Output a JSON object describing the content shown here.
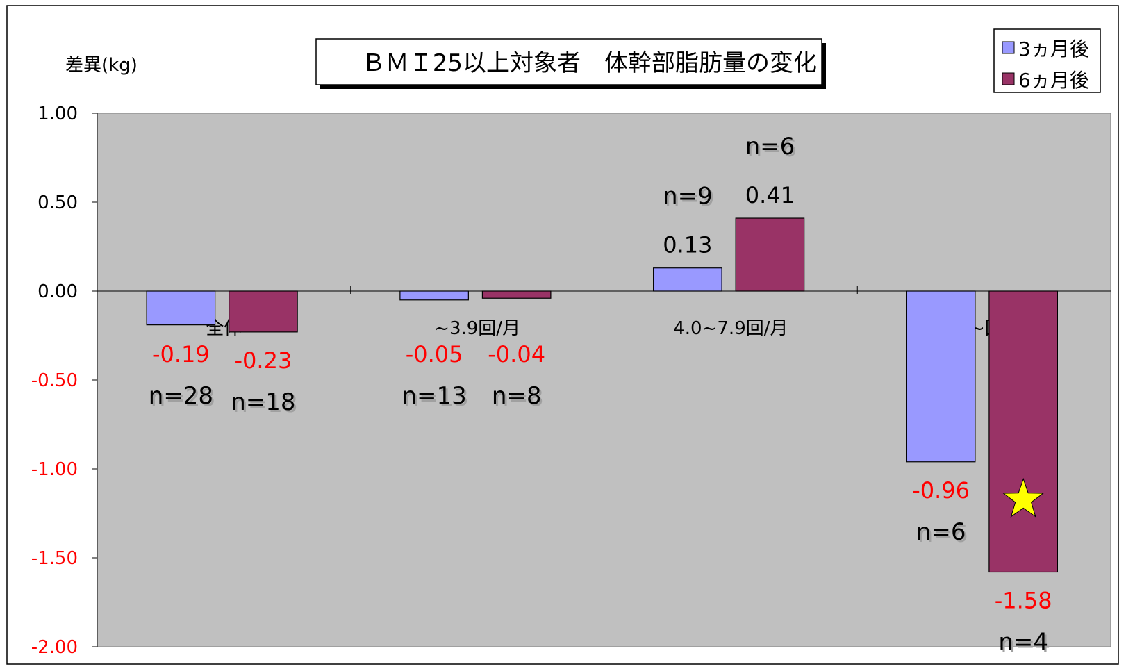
{
  "chart_data": {
    "type": "bar",
    "title": "ＢＭＩ25以上対象者　体幹部脂肪量の変化",
    "ylabel": "差異(kg)",
    "xlabel": "",
    "ylim": [
      -2.0,
      1.0
    ],
    "y_ticks": [
      "1.00",
      "0.50",
      "0.00",
      "-0.50",
      "-1.00",
      "-1.50",
      "-2.00"
    ],
    "y_tick_values": [
      1.0,
      0.5,
      0.0,
      -0.5,
      -1.0,
      -1.5,
      -2.0
    ],
    "categories": [
      "全体",
      "~3.9回/月",
      "4.0~7.9回/月",
      "8.0~回/月"
    ],
    "series": [
      {
        "name": "3ヵ月後",
        "color": "#9999ff",
        "values": [
          -0.19,
          -0.05,
          0.13,
          -0.96
        ],
        "value_labels": [
          "-0.19",
          "-0.05",
          "0.13",
          "-0.96"
        ],
        "n_labels": [
          "n=28",
          "n=13",
          "n=9",
          "n=6"
        ]
      },
      {
        "name": "6ヵ月後",
        "color": "#993366",
        "values": [
          -0.23,
          -0.04,
          0.41,
          -1.58
        ],
        "value_labels": [
          "-0.23",
          "-0.04",
          "0.41",
          "-1.58"
        ],
        "n_labels": [
          "n=18",
          "n=8",
          "n=6",
          "n=4"
        ]
      }
    ],
    "legend_position": "top-right",
    "negative_label_color": "#ff0000",
    "positive_label_color": "#000000",
    "plot_background": "#c0c0c0",
    "star_marker": {
      "series": 1,
      "category": 3,
      "value": -1.15,
      "color": "#ffff00"
    }
  }
}
